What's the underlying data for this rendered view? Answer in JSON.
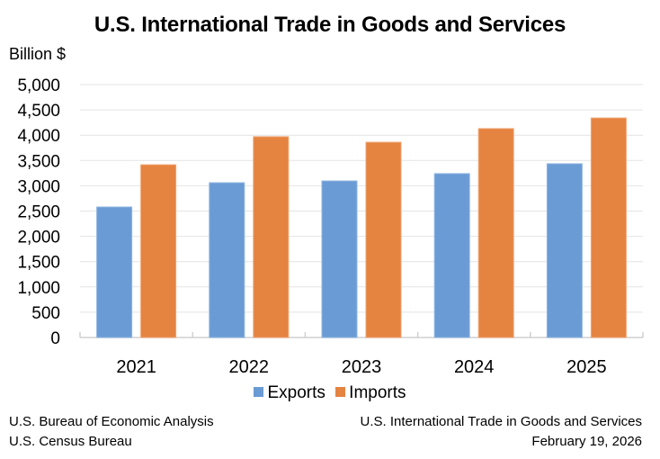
{
  "chart_data": {
    "type": "bar",
    "title": "U.S. International Trade in Goods and Services",
    "ylabel": "Billion $",
    "xlabel": "",
    "categories": [
      "2021",
      "2022",
      "2023",
      "2024",
      "2025"
    ],
    "series": [
      {
        "name": "Exports",
        "color": "#6a9bd4",
        "values": [
          2580,
          3060,
          3095,
          3240,
          3435
        ]
      },
      {
        "name": "Imports",
        "color": "#e58341",
        "values": [
          3415,
          3970,
          3860,
          4130,
          4340
        ]
      }
    ],
    "ylim": [
      0,
      5000
    ],
    "yticks": [
      0,
      500,
      1000,
      1500,
      2000,
      2500,
      3000,
      3500,
      4000,
      4500,
      5000
    ],
    "ytick_labels": [
      "0",
      "500",
      "1,000",
      "1,500",
      "2,000",
      "2,500",
      "3,000",
      "3,500",
      "4,000",
      "4,500",
      "5,000"
    ],
    "grid": true,
    "legend": "bottom"
  },
  "footer": {
    "left_line1": "U.S. Bureau of Economic Analysis",
    "left_line2": "U.S. Census Bureau",
    "right_line1": "U.S. International Trade in Goods and Services",
    "right_line2": "February 19, 2026"
  }
}
